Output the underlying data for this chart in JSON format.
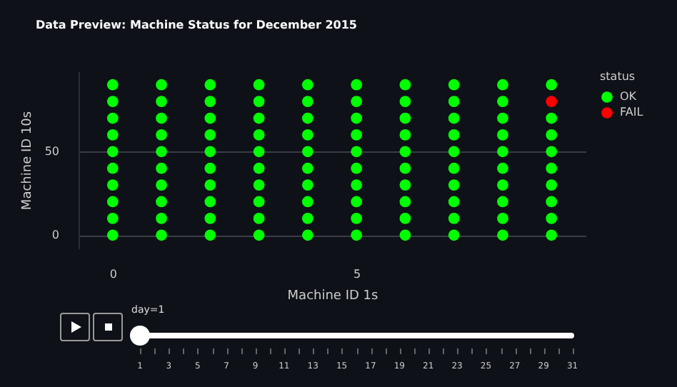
{
  "chart_data": {
    "type": "scatter",
    "title": "Data Preview: Machine Status for December 2015",
    "xlabel": "Machine ID 1s",
    "ylabel": "Machine ID 10s",
    "legend_title": "status",
    "series": [
      {
        "name": "OK",
        "color": "#00ff00",
        "x": [
          0,
          0,
          0,
          0,
          0,
          0,
          0,
          0,
          0,
          0,
          1,
          1,
          1,
          1,
          1,
          1,
          1,
          1,
          1,
          1,
          2,
          2,
          2,
          2,
          2,
          2,
          2,
          2,
          2,
          2,
          3,
          3,
          3,
          3,
          3,
          3,
          3,
          3,
          3,
          3,
          4,
          4,
          4,
          4,
          4,
          4,
          4,
          4,
          4,
          4,
          5,
          5,
          5,
          5,
          5,
          5,
          5,
          5,
          5,
          5,
          6,
          6,
          6,
          6,
          6,
          6,
          6,
          6,
          6,
          6,
          7,
          7,
          7,
          7,
          7,
          7,
          7,
          7,
          7,
          7,
          8,
          8,
          8,
          8,
          8,
          8,
          8,
          8,
          8,
          8,
          9,
          9,
          9,
          9,
          9,
          9,
          9,
          9,
          9
        ],
        "values": [
          0,
          10,
          20,
          30,
          40,
          50,
          60,
          70,
          80,
          90,
          0,
          10,
          20,
          30,
          40,
          50,
          60,
          70,
          80,
          90,
          0,
          10,
          20,
          30,
          40,
          50,
          60,
          70,
          80,
          90,
          0,
          10,
          20,
          30,
          40,
          50,
          60,
          70,
          80,
          90,
          0,
          10,
          20,
          30,
          40,
          50,
          60,
          70,
          80,
          90,
          0,
          10,
          20,
          30,
          40,
          50,
          60,
          70,
          80,
          90,
          0,
          10,
          20,
          30,
          40,
          50,
          60,
          70,
          80,
          90,
          0,
          10,
          20,
          30,
          40,
          50,
          60,
          70,
          80,
          90,
          0,
          10,
          20,
          30,
          40,
          50,
          60,
          70,
          80,
          90,
          0,
          10,
          20,
          30,
          40,
          50,
          60,
          70,
          90
        ]
      },
      {
        "name": "FAIL",
        "color": "#ff0000",
        "x": [
          9
        ],
        "values": [
          80
        ]
      }
    ],
    "xlim": [
      -0.7,
      9.7
    ],
    "ylim": [
      -8,
      98
    ],
    "xticks": [
      0,
      5
    ],
    "yticks": [
      0,
      50
    ],
    "grid": "y",
    "legend": "top right",
    "marker": "circle",
    "annotations": [
      "day=1",
      "1 3 5 7 9 11 13 15 17 19 21 23 25 27 29 31"
    ]
  }
}
